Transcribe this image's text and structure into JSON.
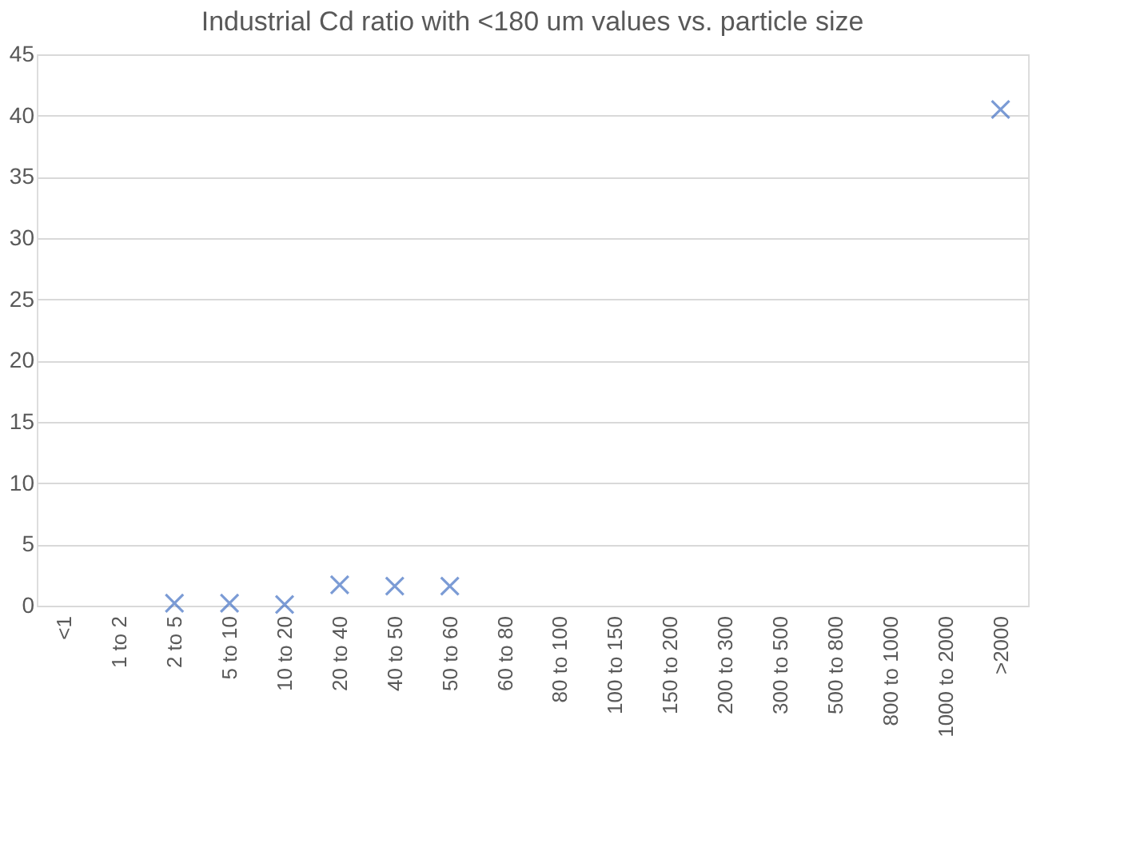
{
  "chart_data": {
    "type": "scatter",
    "title": "Industrial Cd ratio with <180 um values vs. particle size",
    "categories": [
      "<1",
      "1 to 2",
      "2 to 5",
      "5 to 10",
      "10 to 20",
      "20 to 40",
      "40 to 50",
      "50 to 60",
      "60 to 80",
      "80 to 100",
      "100 to 150",
      "150 to 200",
      "200 to 300",
      "300 to 500",
      "500 to 800",
      "800 to 1000",
      "1000 to 2000",
      ">2000"
    ],
    "series": [
      {
        "color": "#4472c4",
        "values": [
          null,
          null,
          0.2,
          0.2,
          0.1,
          1.7,
          1.6,
          1.6,
          null,
          null,
          null,
          null,
          null,
          null,
          null,
          null,
          null,
          40.5
        ]
      }
    ],
    "ylim": [
      0,
      45
    ],
    "yticks": [
      0,
      5,
      10,
      15,
      20,
      25,
      30,
      35,
      40,
      45
    ],
    "grid": "y",
    "marker": "cross"
  }
}
